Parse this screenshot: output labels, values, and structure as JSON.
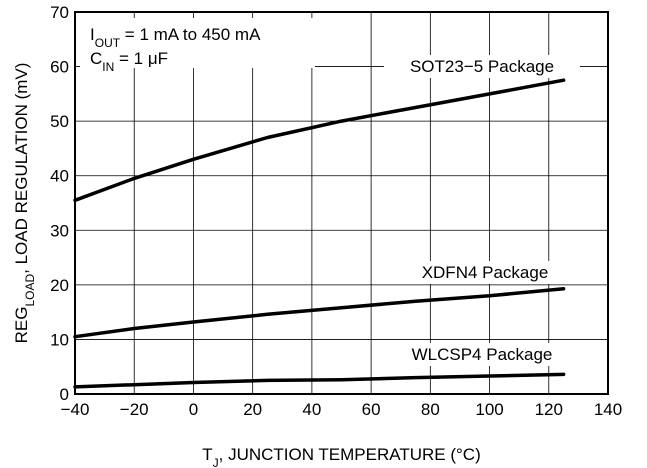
{
  "chart_data": {
    "type": "line",
    "xlabel": {
      "main": "T",
      "sub": "J",
      "rest": ", JUNCTION TEMPERATURE (°C)"
    },
    "ylabel": {
      "main": "REG",
      "sub": "LOAD",
      "rest": ", LOAD REGULATION (mV)"
    },
    "xlim": [
      -40,
      140
    ],
    "ylim": [
      0,
      70
    ],
    "xticks": [
      "−40",
      "−20",
      "0",
      "20",
      "40",
      "60",
      "80",
      "100",
      "120",
      "140"
    ],
    "yticks": [
      "0",
      "10",
      "20",
      "30",
      "40",
      "50",
      "60",
      "70"
    ],
    "grid": true,
    "annotations": [
      {
        "main": "I",
        "sub": "OUT",
        "rest": " = 1 mA to 450 mA"
      },
      {
        "main": "C",
        "sub": "IN",
        "rest": " = 1 μF"
      }
    ],
    "series": [
      {
        "name": "SOT23−5 Package",
        "x": [
          -40,
          -20,
          0,
          25,
          50,
          75,
          100,
          125
        ],
        "values": [
          35.5,
          39.5,
          43,
          47,
          50,
          52.5,
          55,
          57.5
        ]
      },
      {
        "name": "XDFN4 Package",
        "x": [
          -40,
          -20,
          0,
          25,
          50,
          75,
          100,
          125
        ],
        "values": [
          10.5,
          12,
          13.2,
          14.6,
          15.8,
          17,
          18,
          19.3
        ]
      },
      {
        "name": "WLCSP4 Package",
        "x": [
          -40,
          -20,
          0,
          25,
          50,
          75,
          100,
          125
        ],
        "values": [
          1.3,
          1.7,
          2.1,
          2.5,
          2.6,
          3.0,
          3.3,
          3.6
        ]
      }
    ]
  }
}
